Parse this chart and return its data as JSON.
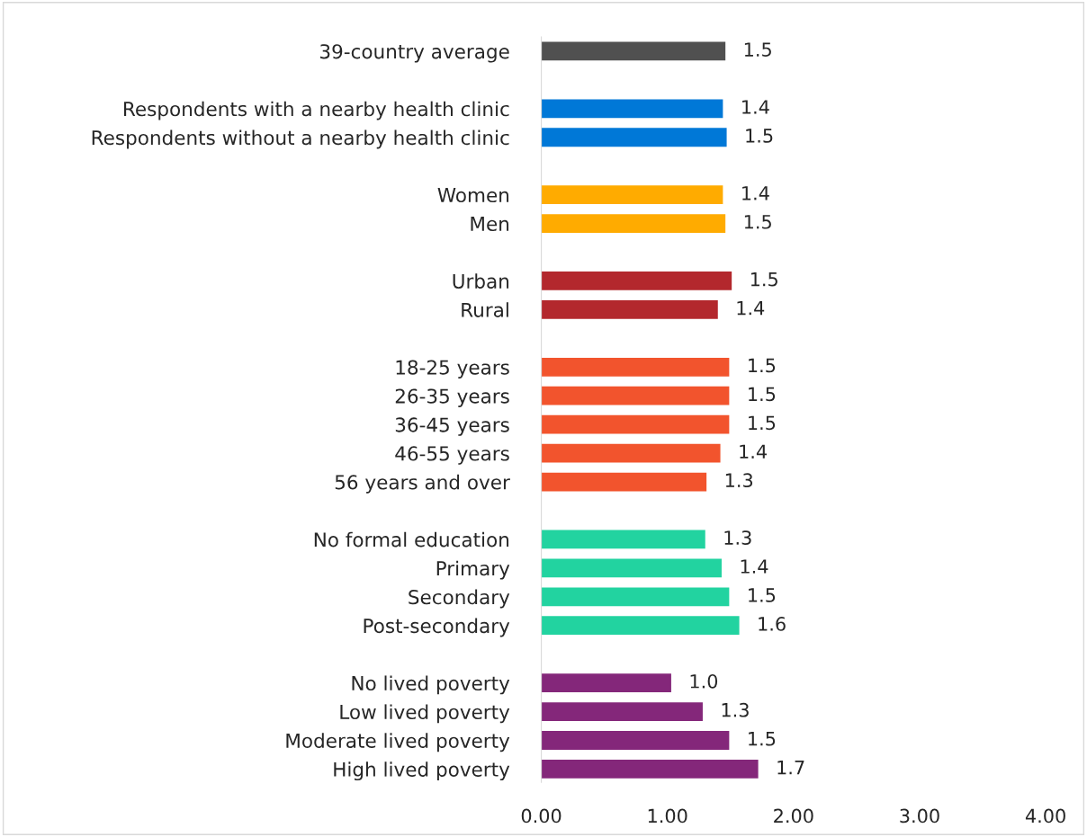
{
  "chart_data": {
    "type": "bar",
    "orientation": "horizontal",
    "categories": [
      "39-country average",
      null,
      "Respondents with a nearby health clinic",
      "Respondents without a nearby health clinic",
      null,
      "Women",
      "Men",
      null,
      "Urban",
      "Rural",
      null,
      "18-25 years",
      "26-35 years",
      "36-45 years",
      "46-55 years",
      "56 years and over",
      null,
      "No formal education",
      "Primary",
      "Secondary",
      "Post-secondary",
      null,
      "No lived poverty",
      "Low lived poverty",
      "Moderate lived poverty",
      "High lived poverty"
    ],
    "values": [
      1.46,
      null,
      1.44,
      1.47,
      null,
      1.44,
      1.46,
      null,
      1.51,
      1.4,
      null,
      1.49,
      1.49,
      1.49,
      1.42,
      1.31,
      null,
      1.3,
      1.43,
      1.49,
      1.57,
      null,
      1.03,
      1.28,
      1.49,
      1.72
    ],
    "value_labels": [
      "1.5",
      null,
      "1.4",
      "1.5",
      null,
      "1.4",
      "1.5",
      null,
      "1.5",
      "1.4",
      null,
      "1.5",
      "1.5",
      "1.5",
      "1.4",
      "1.3",
      null,
      "1.3",
      "1.4",
      "1.5",
      "1.6",
      null,
      "1.0",
      "1.3",
      "1.5",
      "1.7"
    ],
    "colors": [
      "#505050",
      null,
      "#0078d7",
      "#0078d7",
      null,
      "#ffab00",
      "#ffab00",
      null,
      "#b3282d",
      "#b3282d",
      null,
      "#f2542d",
      "#f2542d",
      "#f2542d",
      "#f2542d",
      "#f2542d",
      null,
      "#22d3a0",
      "#22d3a0",
      "#22d3a0",
      "#22d3a0",
      null,
      "#84277a",
      "#84277a",
      "#84277a",
      "#84277a"
    ],
    "xlim": [
      0,
      4
    ],
    "xticks": [
      {
        "value": 0,
        "label": "0.00"
      },
      {
        "value": 1,
        "label": "1.00"
      },
      {
        "value": 2,
        "label": "2.00"
      },
      {
        "value": 3,
        "label": "3.00"
      },
      {
        "value": 4,
        "label": "4.00"
      }
    ],
    "grid": false,
    "legend": false
  }
}
